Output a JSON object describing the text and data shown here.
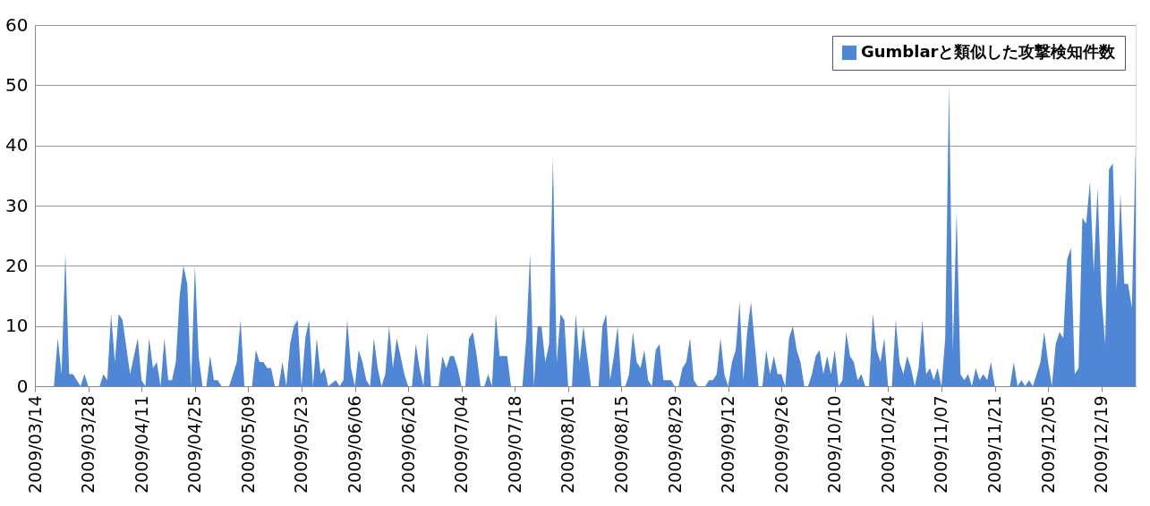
{
  "chart_data": {
    "type": "area",
    "x": [
      "2009-03-19",
      "2009-03-20",
      "2009-03-21",
      "2009-03-22",
      "2009-03-23",
      "2009-03-24",
      "2009-03-26",
      "2009-03-27",
      "2009-03-28",
      "2009-03-31",
      "2009-04-01",
      "2009-04-02",
      "2009-04-03",
      "2009-04-04",
      "2009-04-05",
      "2009-04-06",
      "2009-04-08",
      "2009-04-10",
      "2009-04-11",
      "2009-04-12",
      "2009-04-13",
      "2009-04-14",
      "2009-04-15",
      "2009-04-16",
      "2009-04-17",
      "2009-04-18",
      "2009-04-19",
      "2009-04-20",
      "2009-04-21",
      "2009-04-22",
      "2009-04-23",
      "2009-04-24",
      "2009-04-25",
      "2009-04-26",
      "2009-04-27",
      "2009-04-28",
      "2009-04-29",
      "2009-04-30",
      "2009-05-01",
      "2009-05-02",
      "2009-05-04",
      "2009-05-06",
      "2009-05-07",
      "2009-05-08",
      "2009-05-10",
      "2009-05-11",
      "2009-05-12",
      "2009-05-13",
      "2009-05-14",
      "2009-05-15",
      "2009-05-16",
      "2009-05-17",
      "2009-05-18",
      "2009-05-19",
      "2009-05-20",
      "2009-05-21",
      "2009-05-22",
      "2009-05-23",
      "2009-05-24",
      "2009-05-25",
      "2009-05-26",
      "2009-05-27",
      "2009-05-28",
      "2009-05-29",
      "2009-05-30",
      "2009-06-01",
      "2009-06-02",
      "2009-06-03",
      "2009-06-04",
      "2009-06-05",
      "2009-06-06",
      "2009-06-07",
      "2009-06-08",
      "2009-06-09",
      "2009-06-10",
      "2009-06-11",
      "2009-06-12",
      "2009-06-13",
      "2009-06-14",
      "2009-06-15",
      "2009-06-16",
      "2009-06-17",
      "2009-06-18",
      "2009-06-19",
      "2009-06-20",
      "2009-06-21",
      "2009-06-22",
      "2009-06-23",
      "2009-06-24",
      "2009-06-25",
      "2009-06-26",
      "2009-06-28",
      "2009-06-29",
      "2009-06-30",
      "2009-07-01",
      "2009-07-02",
      "2009-07-03",
      "2009-07-04",
      "2009-07-05",
      "2009-07-06",
      "2009-07-07",
      "2009-07-08",
      "2009-07-09",
      "2009-07-10",
      "2009-07-11",
      "2009-07-12",
      "2009-07-13",
      "2009-07-14",
      "2009-07-16",
      "2009-07-17",
      "2009-07-20",
      "2009-07-21",
      "2009-07-22",
      "2009-07-23",
      "2009-07-24",
      "2009-07-25",
      "2009-07-26",
      "2009-07-27",
      "2009-07-28",
      "2009-07-29",
      "2009-07-30",
      "2009-07-31",
      "2009-08-01",
      "2009-08-02",
      "2009-08-03",
      "2009-08-04",
      "2009-08-05",
      "2009-08-06",
      "2009-08-07",
      "2009-08-09",
      "2009-08-10",
      "2009-08-11",
      "2009-08-12",
      "2009-08-13",
      "2009-08-14",
      "2009-08-15",
      "2009-08-16",
      "2009-08-17",
      "2009-08-18",
      "2009-08-19",
      "2009-08-20",
      "2009-08-21",
      "2009-08-22",
      "2009-08-23",
      "2009-08-24",
      "2009-08-25",
      "2009-08-26",
      "2009-08-28",
      "2009-08-29",
      "2009-08-30",
      "2009-08-31",
      "2009-09-01",
      "2009-09-02",
      "2009-09-03",
      "2009-09-04",
      "2009-09-06",
      "2009-09-07",
      "2009-09-08",
      "2009-09-09",
      "2009-09-10",
      "2009-09-11",
      "2009-09-12",
      "2009-09-13",
      "2009-09-14",
      "2009-09-15",
      "2009-09-16",
      "2009-09-17",
      "2009-09-18",
      "2009-09-19",
      "2009-09-20",
      "2009-09-21",
      "2009-09-22",
      "2009-09-23",
      "2009-09-24",
      "2009-09-25",
      "2009-09-26",
      "2009-09-27",
      "2009-09-28",
      "2009-09-29",
      "2009-09-30",
      "2009-10-01",
      "2009-10-02",
      "2009-10-03",
      "2009-10-04",
      "2009-10-05",
      "2009-10-06",
      "2009-10-07",
      "2009-10-08",
      "2009-10-09",
      "2009-10-10",
      "2009-10-11",
      "2009-10-12",
      "2009-10-13",
      "2009-10-14",
      "2009-10-15",
      "2009-10-16",
      "2009-10-17",
      "2009-10-18",
      "2009-10-19",
      "2009-10-20",
      "2009-10-21",
      "2009-10-22",
      "2009-10-23",
      "2009-10-24",
      "2009-10-25",
      "2009-10-26",
      "2009-10-27",
      "2009-10-28",
      "2009-10-29",
      "2009-10-30",
      "2009-10-31",
      "2009-11-01",
      "2009-11-02",
      "2009-11-03",
      "2009-11-04",
      "2009-11-05",
      "2009-11-06",
      "2009-11-07",
      "2009-11-08",
      "2009-11-09",
      "2009-11-10",
      "2009-11-11",
      "2009-11-12",
      "2009-11-13",
      "2009-11-14",
      "2009-11-15",
      "2009-11-16",
      "2009-11-17",
      "2009-11-18",
      "2009-11-19",
      "2009-11-20",
      "2009-11-21",
      "2009-11-25",
      "2009-11-26",
      "2009-11-27",
      "2009-11-28",
      "2009-11-29",
      "2009-11-30",
      "2009-12-01",
      "2009-12-02",
      "2009-12-03",
      "2009-12-04",
      "2009-12-05",
      "2009-12-06",
      "2009-12-07",
      "2009-12-08",
      "2009-12-09",
      "2009-12-10",
      "2009-12-11",
      "2009-12-12",
      "2009-12-13",
      "2009-12-14",
      "2009-12-15",
      "2009-12-16",
      "2009-12-17",
      "2009-12-18",
      "2009-12-19",
      "2009-12-20",
      "2009-12-21",
      "2009-12-22",
      "2009-12-23",
      "2009-12-24",
      "2009-12-25",
      "2009-12-26",
      "2009-12-27",
      "2009-12-28"
    ],
    "series": [
      {
        "name": "Gumblarと類似した攻撃検知件数",
        "color": "#4f86d6",
        "values": [
          0,
          8,
          2,
          22,
          2,
          2,
          0,
          2,
          0,
          0,
          2,
          1,
          12,
          4,
          12,
          11,
          2,
          8,
          1,
          0,
          8,
          3,
          4,
          0,
          8,
          1,
          1,
          4,
          15,
          20,
          17,
          0,
          20,
          5,
          0,
          0,
          5,
          1,
          1,
          0,
          0,
          4,
          11,
          0,
          0,
          6,
          4,
          4,
          3,
          3,
          0,
          0,
          4,
          0,
          7,
          10,
          11,
          0,
          8,
          11,
          0,
          8,
          2,
          3,
          0,
          1,
          0,
          1,
          11,
          3,
          0,
          6,
          4,
          1,
          0,
          8,
          3,
          0,
          2,
          10,
          3,
          8,
          5,
          2,
          0,
          0,
          7,
          3,
          0,
          9,
          0,
          0,
          5,
          3,
          5,
          5,
          3,
          0,
          0,
          8,
          9,
          5,
          0,
          0,
          2,
          0,
          12,
          5,
          5,
          0,
          0,
          8,
          22,
          0,
          10,
          10,
          4,
          7,
          38,
          4,
          12,
          11,
          0,
          0,
          12,
          4,
          10,
          5,
          0,
          0,
          10,
          12,
          1,
          5,
          10,
          0,
          0,
          2,
          9,
          4,
          3,
          6,
          1,
          0,
          6,
          7,
          1,
          1,
          0,
          0,
          3,
          4,
          8,
          1,
          0,
          0,
          1,
          1,
          2,
          8,
          2,
          0,
          4,
          6,
          14,
          1,
          9,
          14,
          7,
          0,
          0,
          6,
          2,
          5,
          2,
          2,
          0,
          8,
          10,
          6,
          4,
          0,
          0,
          2,
          5,
          6,
          2,
          5,
          2,
          6,
          0,
          1,
          9,
          5,
          4,
          1,
          2,
          0,
          0,
          12,
          6,
          4,
          8,
          0,
          0,
          11,
          4,
          2,
          5,
          3,
          0,
          3,
          11,
          2,
          3,
          1,
          3,
          0,
          8,
          50,
          6,
          29,
          2,
          1,
          2,
          0,
          3,
          1,
          2,
          1,
          4,
          0,
          0,
          4,
          0,
          1,
          0,
          1,
          0,
          2,
          4,
          9,
          4,
          0,
          7,
          9,
          8,
          21,
          23,
          2,
          3,
          28,
          27,
          34,
          19,
          33,
          15,
          7,
          36,
          37,
          16,
          32,
          17,
          17,
          13,
          40
        ]
      }
    ],
    "xlim": [
      "2009-03-14",
      "2009-12-28"
    ],
    "xticks": [
      {
        "value": "2009-03-14",
        "label": "2009/03/14"
      },
      {
        "value": "2009-03-28",
        "label": "2009/03/28"
      },
      {
        "value": "2009-04-11",
        "label": "2009/04/11"
      },
      {
        "value": "2009-04-25",
        "label": "2009/04/25"
      },
      {
        "value": "2009-05-09",
        "label": "2009/05/09"
      },
      {
        "value": "2009-05-23",
        "label": "2009/05/23"
      },
      {
        "value": "2009-06-06",
        "label": "2009/06/06"
      },
      {
        "value": "2009-06-20",
        "label": "2009/06/20"
      },
      {
        "value": "2009-07-04",
        "label": "2009/07/04"
      },
      {
        "value": "2009-07-18",
        "label": "2009/07/18"
      },
      {
        "value": "2009-08-01",
        "label": "2009/08/01"
      },
      {
        "value": "2009-08-15",
        "label": "2009/08/15"
      },
      {
        "value": "2009-08-29",
        "label": "2009/08/29"
      },
      {
        "value": "2009-09-12",
        "label": "2009/09/12"
      },
      {
        "value": "2009-09-26",
        "label": "2009/09/26"
      },
      {
        "value": "2009-10-10",
        "label": "2009/10/10"
      },
      {
        "value": "2009-10-24",
        "label": "2009/10/24"
      },
      {
        "value": "2009-11-07",
        "label": "2009/11/07"
      },
      {
        "value": "2009-11-21",
        "label": "2009/11/21"
      },
      {
        "value": "2009-12-05",
        "label": "2009/12/05"
      },
      {
        "value": "2009-12-19",
        "label": "2009/12/19"
      }
    ],
    "ylim": [
      0,
      60
    ],
    "yticks": [
      0,
      10,
      20,
      30,
      40,
      50,
      60
    ],
    "grid": "y",
    "legend": "top right"
  }
}
